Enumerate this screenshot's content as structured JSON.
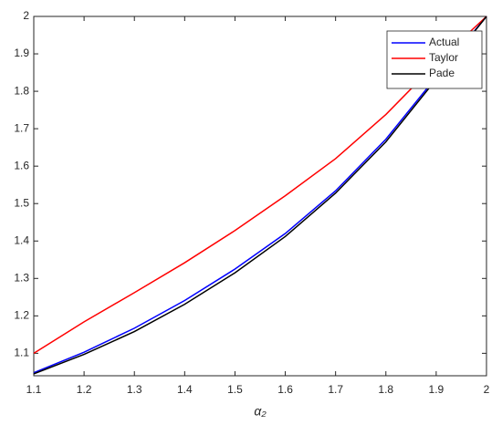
{
  "chart_data": {
    "type": "line",
    "xlabel": "α₂",
    "x": [
      1.1,
      1.2,
      1.3,
      1.4,
      1.5,
      1.6,
      1.7,
      1.8,
      1.9,
      2
    ],
    "series": [
      {
        "name": "Actual",
        "color": "#0000ff",
        "values": [
          1.048,
          1.103,
          1.167,
          1.241,
          1.325,
          1.42,
          1.534,
          1.672,
          1.838,
          2.0
        ]
      },
      {
        "name": "Taylor",
        "color": "#ff0000",
        "values": [
          1.1,
          1.184,
          1.262,
          1.342,
          1.428,
          1.521,
          1.62,
          1.738,
          1.875,
          2.0
        ]
      },
      {
        "name": "Pade",
        "color": "#000000",
        "values": [
          1.045,
          1.097,
          1.158,
          1.231,
          1.315,
          1.412,
          1.528,
          1.665,
          1.832,
          2.0
        ]
      }
    ],
    "xlim": [
      1.1,
      2
    ],
    "ylim": [
      1.04,
      2
    ],
    "xticks": [
      1.1,
      1.2,
      1.3,
      1.4,
      1.5,
      1.6,
      1.7,
      1.8,
      1.9,
      2
    ],
    "yticks": [
      1.1,
      1.2,
      1.3,
      1.4,
      1.5,
      1.6,
      1.7,
      1.8,
      1.9,
      2
    ],
    "grid": false,
    "legend": "top-right"
  }
}
